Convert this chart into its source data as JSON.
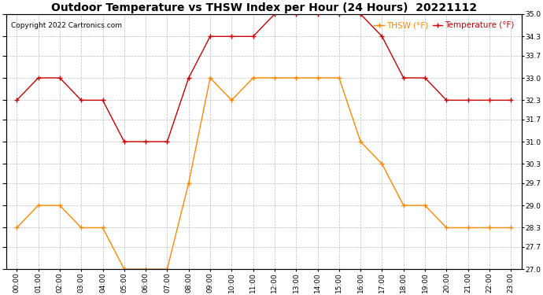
{
  "title": "Outdoor Temperature vs THSW Index per Hour (24 Hours)  20221112",
  "copyright": "Copyright 2022 Cartronics.com",
  "legend_thsw": "THSW (°F)",
  "legend_temp": "Temperature (°F)",
  "hours": [
    "00:00",
    "01:00",
    "02:00",
    "03:00",
    "04:00",
    "05:00",
    "06:00",
    "07:00",
    "08:00",
    "09:00",
    "10:00",
    "11:00",
    "12:00",
    "13:00",
    "14:00",
    "15:00",
    "16:00",
    "17:00",
    "18:00",
    "19:00",
    "20:00",
    "21:00",
    "22:00",
    "23:00"
  ],
  "temperature": [
    32.3,
    33.0,
    33.0,
    32.3,
    32.3,
    31.0,
    31.0,
    31.0,
    33.0,
    34.3,
    34.3,
    34.3,
    35.0,
    35.0,
    35.0,
    35.0,
    35.0,
    34.3,
    33.0,
    33.0,
    32.3,
    32.3,
    32.3,
    32.3
  ],
  "thsw": [
    28.3,
    29.0,
    29.0,
    28.3,
    28.3,
    27.0,
    27.0,
    27.0,
    29.7,
    33.0,
    32.3,
    33.0,
    33.0,
    33.0,
    33.0,
    33.0,
    31.0,
    30.3,
    29.0,
    29.0,
    28.3,
    28.3,
    28.3,
    28.3
  ],
  "temp_color": "#cc0000",
  "thsw_color": "#ff8800",
  "background_color": "#ffffff",
  "grid_color": "#bbbbbb",
  "ylim": [
    27.0,
    35.0
  ],
  "yticks": [
    27.0,
    27.7,
    28.3,
    29.0,
    29.7,
    30.3,
    31.0,
    31.7,
    32.3,
    33.0,
    33.7,
    34.3,
    35.0
  ],
  "title_fontsize": 10,
  "copyright_fontsize": 6.5,
  "legend_fontsize": 7.5,
  "tick_fontsize": 6.5
}
